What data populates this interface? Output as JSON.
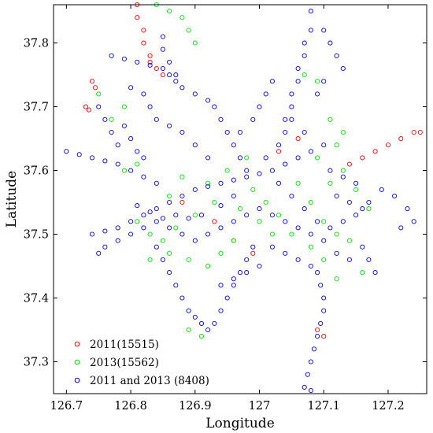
{
  "chart_data": {
    "type": "scatter",
    "title": "",
    "xlabel": "Longitude",
    "ylabel": "Latitude",
    "xlim": [
      126.68,
      127.26
    ],
    "ylim": [
      37.25,
      37.86
    ],
    "xticks": [
      126.7,
      126.8,
      126.9,
      127.0,
      127.1,
      127.2
    ],
    "xtick_labels": [
      "126.7",
      "126.8",
      "126.9",
      "127",
      "127.1",
      "127.2"
    ],
    "yticks": [
      37.3,
      37.4,
      37.5,
      37.6,
      37.7,
      37.8
    ],
    "ytick_labels": [
      "37.3",
      "37.4",
      "37.5",
      "37.6",
      "37.7",
      "37.8"
    ],
    "grid": false,
    "legend_position": "bottom-left",
    "marker": "open-circle",
    "series": [
      {
        "name": "2011(15515)",
        "color": "#ff0000",
        "points": [
          [
            126.81,
            37.86
          ],
          [
            126.81,
            37.84
          ],
          [
            126.82,
            37.82
          ],
          [
            126.82,
            37.8
          ],
          [
            126.83,
            37.78
          ],
          [
            126.83,
            37.77
          ],
          [
            126.84,
            37.76
          ],
          [
            126.85,
            37.75
          ],
          [
            126.74,
            37.74
          ],
          [
            126.745,
            37.73
          ],
          [
            126.73,
            37.7
          ],
          [
            126.735,
            37.695
          ],
          [
            127.14,
            37.61
          ],
          [
            127.16,
            37.62
          ],
          [
            127.18,
            37.63
          ],
          [
            127.2,
            37.64
          ],
          [
            127.22,
            37.65
          ],
          [
            127.24,
            37.66
          ],
          [
            127.25,
            37.66
          ],
          [
            127.06,
            37.65
          ],
          [
            127.03,
            37.63
          ],
          [
            127.09,
            37.35
          ],
          [
            127.1,
            37.34
          ],
          [
            126.96,
            37.49
          ],
          [
            126.88,
            37.55
          ],
          [
            126.93,
            37.52
          ],
          [
            126.99,
            37.47
          ]
        ]
      },
      {
        "name": "2013(15562)",
        "color": "#00dd00",
        "points": [
          [
            126.84,
            37.86
          ],
          [
            126.86,
            37.85
          ],
          [
            126.88,
            37.84
          ],
          [
            126.89,
            37.82
          ],
          [
            126.9,
            37.8
          ],
          [
            126.75,
            37.72
          ],
          [
            126.77,
            37.68
          ],
          [
            126.79,
            37.7
          ],
          [
            127.12,
            37.64
          ],
          [
            127.13,
            37.66
          ],
          [
            127.11,
            37.68
          ],
          [
            127.13,
            37.6
          ],
          [
            127.06,
            37.58
          ],
          [
            127.08,
            37.55
          ],
          [
            127.1,
            37.52
          ],
          [
            127.12,
            37.5
          ],
          [
            126.99,
            37.57
          ],
          [
            127.01,
            37.55
          ],
          [
            127.03,
            37.53
          ],
          [
            126.97,
            37.54
          ],
          [
            126.93,
            37.55
          ],
          [
            126.9,
            37.53
          ],
          [
            126.87,
            37.51
          ],
          [
            126.85,
            37.49
          ],
          [
            126.83,
            37.5
          ],
          [
            126.81,
            37.52
          ],
          [
            126.86,
            37.56
          ],
          [
            126.88,
            37.59
          ],
          [
            126.92,
            37.58
          ],
          [
            126.95,
            37.6
          ],
          [
            127.05,
            37.5
          ],
          [
            127.08,
            37.48
          ],
          [
            127.1,
            37.46
          ],
          [
            127.14,
            37.49
          ],
          [
            127.16,
            37.44
          ],
          [
            127.12,
            37.43
          ],
          [
            126.96,
            37.49
          ],
          [
            126.94,
            37.47
          ],
          [
            126.92,
            37.45
          ],
          [
            126.89,
            37.46
          ],
          [
            126.86,
            37.47
          ],
          [
            126.83,
            37.46
          ],
          [
            127.02,
            37.5
          ],
          [
            127.0,
            37.52
          ],
          [
            126.98,
            37.62
          ],
          [
            127.04,
            37.61
          ],
          [
            127.09,
            37.62
          ],
          [
            127.11,
            37.58
          ],
          [
            127.15,
            37.57
          ],
          [
            127.17,
            37.54
          ],
          [
            126.91,
            37.34
          ],
          [
            126.89,
            37.35
          ],
          [
            127.07,
            37.75
          ],
          [
            127.09,
            37.74
          ],
          [
            126.79,
            37.6
          ],
          [
            126.81,
            37.61
          ]
        ]
      },
      {
        "name": "2011 and 2013 (8408)",
        "color": "#0000ee",
        "points": [
          [
            126.77,
            37.78
          ],
          [
            126.79,
            37.775
          ],
          [
            126.81,
            37.77
          ],
          [
            126.83,
            37.765
          ],
          [
            126.85,
            37.76
          ],
          [
            126.86,
            37.75
          ],
          [
            126.87,
            37.74
          ],
          [
            126.88,
            37.73
          ],
          [
            126.9,
            37.72
          ],
          [
            126.92,
            37.71
          ],
          [
            126.93,
            37.7
          ],
          [
            126.94,
            37.68
          ],
          [
            126.95,
            37.66
          ],
          [
            126.96,
            37.64
          ],
          [
            126.97,
            37.62
          ],
          [
            126.98,
            37.6
          ],
          [
            127.08,
            37.85
          ],
          [
            127.08,
            37.82
          ],
          [
            127.07,
            37.8
          ],
          [
            127.07,
            37.78
          ],
          [
            127.06,
            37.76
          ],
          [
            127.06,
            37.74
          ],
          [
            127.05,
            37.72
          ],
          [
            127.05,
            37.7
          ],
          [
            127.04,
            37.68
          ],
          [
            127.04,
            37.66
          ],
          [
            127.1,
            37.82
          ],
          [
            127.11,
            37.8
          ],
          [
            127.12,
            37.78
          ],
          [
            127.13,
            37.76
          ],
          [
            127.1,
            37.74
          ],
          [
            127.09,
            37.72
          ],
          [
            126.85,
            37.81
          ],
          [
            126.85,
            37.79
          ],
          [
            126.86,
            37.77
          ],
          [
            126.87,
            37.75
          ],
          [
            126.7,
            37.63
          ],
          [
            126.72,
            37.625
          ],
          [
            126.74,
            37.62
          ],
          [
            126.76,
            37.615
          ],
          [
            126.78,
            37.61
          ],
          [
            126.8,
            37.6
          ],
          [
            126.82,
            37.59
          ],
          [
            126.84,
            37.58
          ],
          [
            126.75,
            37.7
          ],
          [
            126.76,
            37.68
          ],
          [
            126.77,
            37.66
          ],
          [
            126.78,
            37.64
          ],
          [
            126.79,
            37.67
          ],
          [
            126.8,
            37.65
          ],
          [
            126.81,
            37.63
          ],
          [
            126.82,
            37.62
          ],
          [
            126.74,
            37.5
          ],
          [
            126.76,
            37.505
          ],
          [
            126.78,
            37.51
          ],
          [
            126.8,
            37.52
          ],
          [
            126.82,
            37.53
          ],
          [
            126.84,
            37.54
          ],
          [
            126.86,
            37.55
          ],
          [
            126.88,
            37.56
          ],
          [
            126.9,
            37.57
          ],
          [
            126.92,
            37.575
          ],
          [
            126.94,
            37.58
          ],
          [
            126.96,
            37.585
          ],
          [
            126.98,
            37.59
          ],
          [
            127.0,
            37.595
          ],
          [
            127.02,
            37.6
          ],
          [
            127.04,
            37.61
          ],
          [
            127.06,
            37.62
          ],
          [
            127.08,
            37.63
          ],
          [
            127.1,
            37.64
          ],
          [
            127.07,
            37.66
          ],
          [
            127.05,
            37.68
          ],
          [
            127.03,
            37.64
          ],
          [
            127.01,
            37.62
          ],
          [
            127.03,
            37.58
          ],
          [
            127.05,
            37.56
          ],
          [
            127.07,
            37.54
          ],
          [
            127.09,
            37.52
          ],
          [
            127.11,
            37.51
          ],
          [
            127.13,
            37.52
          ],
          [
            127.15,
            37.53
          ],
          [
            127.17,
            37.55
          ],
          [
            127.19,
            37.57
          ],
          [
            127.21,
            37.56
          ],
          [
            127.23,
            37.54
          ],
          [
            127.24,
            37.52
          ],
          [
            127.22,
            37.51
          ],
          [
            127.16,
            37.48
          ],
          [
            127.17,
            37.46
          ],
          [
            127.18,
            37.44
          ],
          [
            127.14,
            37.46
          ],
          [
            127.12,
            37.47
          ],
          [
            127.1,
            37.49
          ],
          [
            127.08,
            37.5
          ],
          [
            127.06,
            37.51
          ],
          [
            127.04,
            37.52
          ],
          [
            127.02,
            37.53
          ],
          [
            127.0,
            37.54
          ],
          [
            126.98,
            37.53
          ],
          [
            126.96,
            37.52
          ],
          [
            126.94,
            37.51
          ],
          [
            126.92,
            37.5
          ],
          [
            126.9,
            37.49
          ],
          [
            126.88,
            37.5
          ],
          [
            126.86,
            37.51
          ],
          [
            126.84,
            37.52
          ],
          [
            126.82,
            37.51
          ],
          [
            126.8,
            37.5
          ],
          [
            126.78,
            37.49
          ],
          [
            126.76,
            37.48
          ],
          [
            126.75,
            37.47
          ],
          [
            126.84,
            37.48
          ],
          [
            126.85,
            37.46
          ],
          [
            126.86,
            37.44
          ],
          [
            126.87,
            37.42
          ],
          [
            126.88,
            37.4
          ],
          [
            126.89,
            37.38
          ],
          [
            126.9,
            37.37
          ],
          [
            126.91,
            37.36
          ],
          [
            126.92,
            37.35
          ],
          [
            126.93,
            37.36
          ],
          [
            126.94,
            37.38
          ],
          [
            126.95,
            37.4
          ],
          [
            126.96,
            37.42
          ],
          [
            126.97,
            37.44
          ],
          [
            126.98,
            37.46
          ],
          [
            126.99,
            37.48
          ],
          [
            127.09,
            37.44
          ],
          [
            127.095,
            37.42
          ],
          [
            127.1,
            37.4
          ],
          [
            127.1,
            37.38
          ],
          [
            127.095,
            37.36
          ],
          [
            127.09,
            37.34
          ],
          [
            127.085,
            37.32
          ],
          [
            127.08,
            37.3
          ],
          [
            127.075,
            37.28
          ],
          [
            127.07,
            37.26
          ],
          [
            127.08,
            37.255
          ],
          [
            126.92,
            37.62
          ],
          [
            126.9,
            37.64
          ],
          [
            126.88,
            37.66
          ],
          [
            126.86,
            37.67
          ],
          [
            126.84,
            37.68
          ],
          [
            126.83,
            37.7
          ],
          [
            126.82,
            37.72
          ],
          [
            126.8,
            37.73
          ],
          [
            126.96,
            37.56
          ],
          [
            126.94,
            37.545
          ],
          [
            126.91,
            37.53
          ],
          [
            126.89,
            37.525
          ],
          [
            126.87,
            37.53
          ],
          [
            126.85,
            37.525
          ],
          [
            126.83,
            37.535
          ],
          [
            126.81,
            37.545
          ],
          [
            127.02,
            37.48
          ],
          [
            127.04,
            37.47
          ],
          [
            127.06,
            37.46
          ],
          [
            127.08,
            37.45
          ],
          [
            127.0,
            37.45
          ],
          [
            126.98,
            37.44
          ],
          [
            126.96,
            37.43
          ],
          [
            126.94,
            37.42
          ],
          [
            127.11,
            37.6
          ],
          [
            127.13,
            37.59
          ],
          [
            127.15,
            37.58
          ],
          [
            127.12,
            37.56
          ],
          [
            127.14,
            37.55
          ],
          [
            127.16,
            37.54
          ],
          [
            126.97,
            37.66
          ],
          [
            126.99,
            37.68
          ],
          [
            127.0,
            37.7
          ],
          [
            127.01,
            37.72
          ],
          [
            127.02,
            37.74
          ]
        ]
      }
    ]
  }
}
